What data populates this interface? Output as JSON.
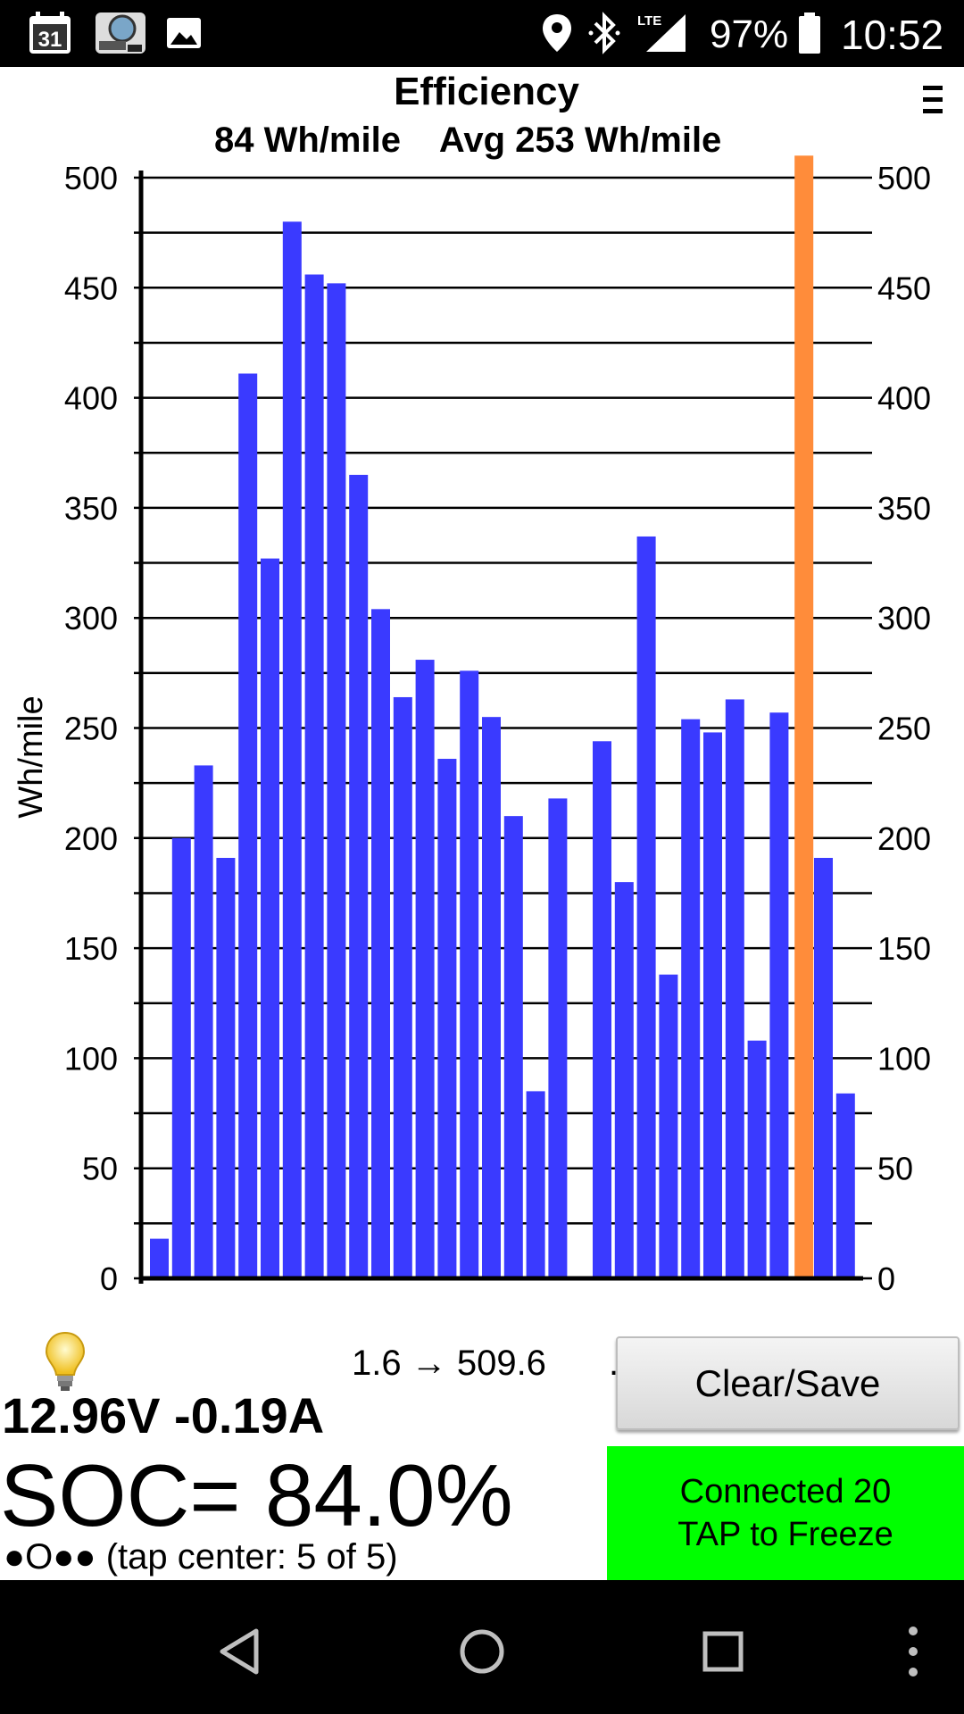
{
  "status_bar": {
    "calendar_day": "31",
    "battery_pct": "97%",
    "time": "10:52",
    "signal_label": "LTE",
    "icons": [
      "calendar-icon",
      "app-icon",
      "gallery-icon",
      "location-icon",
      "bluetooth-icon",
      "lte-signal-icon",
      "battery-icon"
    ]
  },
  "header": {
    "title": "Efficiency",
    "subtitle": "84 Wh/mile    Avg 253 Wh/mile"
  },
  "chart_data": {
    "type": "bar",
    "title": "Efficiency",
    "subtitle": "84 Wh/mile    Avg 253 Wh/mile",
    "xlabel": "",
    "ylabel": "Wh/mile",
    "ylim": [
      0,
      500
    ],
    "yticks": [
      0,
      50,
      100,
      150,
      200,
      250,
      300,
      350,
      400,
      450,
      500
    ],
    "grid": true,
    "values": [
      18,
      200,
      233,
      191,
      411,
      327,
      480,
      456,
      452,
      365,
      304,
      264,
      281,
      236,
      276,
      255,
      210,
      85,
      218,
      1,
      244,
      180,
      337,
      138,
      254,
      248,
      263,
      108,
      257,
      510,
      191,
      84
    ],
    "highlight_index": 29,
    "bar_color": "#3a3aff",
    "highlight_color": "#ff8c3a"
  },
  "footer": {
    "voltage": "12.96V -0.19A",
    "range": "1.6 → 509.6",
    "range_dot": ".",
    "clear_save_label": "Clear/Save",
    "soc": "SOC= 84.0%",
    "tap_info": "●O●● (tap center: 5 of 5)",
    "connected_line1": "Connected 20",
    "connected_line2": "TAP to Freeze"
  },
  "nav": {
    "icons": [
      "back-icon",
      "home-icon",
      "recents-icon",
      "more-icon"
    ]
  },
  "colors": {
    "connected_bg": "#00ff00",
    "bar": "#3a3aff",
    "highlight": "#ff8c3a"
  }
}
